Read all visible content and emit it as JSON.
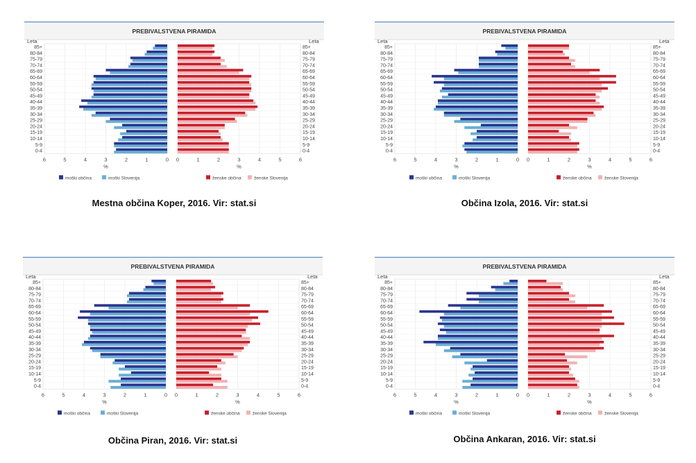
{
  "shared": {
    "title": "PREBIVALSTVENA PIRAMIDA",
    "years_label": "Leta",
    "unit": "%",
    "legend": {
      "male_local": "moški občina",
      "male_slovenia": "moški Slovenija",
      "female_local": "ženske občina",
      "female_slovenia": "ženske Slovenija"
    },
    "colors": {
      "male_local": "#2a3590",
      "male_slovenia": "#6aaed6",
      "female_local": "#c8202c",
      "female_slovenia": "#f2b2b4"
    }
  },
  "chart_data": [
    {
      "type": "bar",
      "caption": "Mestna občina Koper, 2016. Vir: stat.si",
      "xlim": [
        0,
        6
      ],
      "categories": [
        "85+",
        "80-84",
        "75-79",
        "70-74",
        "65-69",
        "60-64",
        "55-59",
        "50-54",
        "45-49",
        "40-44",
        "35-39",
        "30-34",
        "25-29",
        "20-24",
        "15-19",
        "10-14",
        "5-9",
        "0-4"
      ],
      "series": [
        {
          "name": "moški občina",
          "values": [
            0.6,
            1.0,
            1.8,
            1.8,
            3.0,
            3.6,
            3.6,
            3.7,
            3.6,
            4.2,
            4.3,
            3.5,
            2.8,
            2.2,
            2.0,
            2.2,
            2.6,
            2.5
          ]
        },
        {
          "name": "moški Slovenija",
          "values": [
            0.7,
            1.1,
            1.7,
            1.9,
            2.8,
            3.5,
            3.7,
            3.6,
            3.7,
            3.9,
            4.1,
            3.7,
            3.0,
            2.6,
            2.3,
            2.4,
            2.6,
            2.6
          ]
        },
        {
          "name": "ženske občina",
          "values": [
            1.8,
            1.8,
            2.1,
            2.1,
            3.2,
            3.6,
            3.5,
            3.6,
            3.5,
            3.7,
            3.9,
            3.3,
            2.8,
            2.3,
            2.0,
            2.1,
            2.5,
            2.5
          ]
        },
        {
          "name": "ženske Slovenija",
          "values": [
            1.7,
            1.7,
            2.3,
            2.4,
            3.0,
            3.5,
            3.6,
            3.6,
            3.5,
            3.8,
            3.8,
            3.4,
            2.9,
            2.3,
            2.1,
            2.2,
            2.5,
            2.5
          ]
        }
      ]
    },
    {
      "type": "bar",
      "caption": "Občina Izola, 2016. Vir: stat.si",
      "xlim": [
        0,
        6
      ],
      "categories": [
        "85+",
        "80-84",
        "75-79",
        "70-74",
        "65-69",
        "60-64",
        "55-59",
        "50-54",
        "45-49",
        "40-44",
        "35-39",
        "30-34",
        "25-29",
        "20-24",
        "15-19",
        "10-14",
        "5-9",
        "0-4"
      ],
      "series": [
        {
          "name": "moški občina",
          "values": [
            0.8,
            1.1,
            1.9,
            1.9,
            3.1,
            4.2,
            4.1,
            3.7,
            3.4,
            3.9,
            4.0,
            3.6,
            2.8,
            1.8,
            2.0,
            2.0,
            2.6,
            2.6
          ]
        },
        {
          "name": "moški Slovenija",
          "values": [
            0.6,
            1.0,
            1.9,
            1.9,
            2.9,
            3.6,
            3.6,
            3.8,
            3.7,
            3.9,
            4.1,
            3.6,
            3.1,
            2.6,
            2.3,
            2.2,
            2.7,
            2.5
          ]
        },
        {
          "name": "ženske občina",
          "values": [
            2.0,
            1.7,
            2.0,
            2.1,
            3.5,
            4.3,
            4.3,
            3.9,
            3.3,
            3.3,
            3.7,
            3.2,
            2.9,
            2.0,
            1.5,
            2.0,
            2.5,
            2.5
          ]
        },
        {
          "name": "ženske Slovenija",
          "values": [
            2.0,
            1.8,
            2.3,
            2.3,
            3.0,
            3.5,
            3.6,
            3.6,
            3.5,
            3.5,
            3.6,
            3.3,
            2.9,
            2.4,
            2.1,
            2.1,
            2.4,
            2.4
          ]
        }
      ]
    },
    {
      "type": "bar",
      "caption": "Občina Piran, 2016. Vir: stat.si",
      "xlim": [
        0,
        6
      ],
      "categories": [
        "85+",
        "80-84",
        "75-79",
        "70-74",
        "65-69",
        "60-64",
        "55-59",
        "50-54",
        "45-49",
        "40-44",
        "35-39",
        "30-34",
        "25-29",
        "20-24",
        "15-19",
        "10-14",
        "5-9",
        "0-4"
      ],
      "series": [
        {
          "name": "moški občina",
          "values": [
            0.7,
            1.0,
            1.8,
            1.8,
            3.5,
            4.2,
            4.3,
            3.8,
            3.7,
            3.7,
            4.0,
            3.7,
            3.2,
            2.5,
            2.0,
            1.7,
            2.2,
            2.2
          ]
        },
        {
          "name": "moški Slovenija",
          "values": [
            0.6,
            1.1,
            1.9,
            1.9,
            2.8,
            3.7,
            3.8,
            3.7,
            3.6,
            3.8,
            4.1,
            3.6,
            3.2,
            2.6,
            2.3,
            2.3,
            2.8,
            2.7
          ]
        },
        {
          "name": "ženske občina",
          "values": [
            1.7,
            1.9,
            2.3,
            2.3,
            3.6,
            4.5,
            4.0,
            4.1,
            3.4,
            3.2,
            3.6,
            3.3,
            2.8,
            2.2,
            2.0,
            1.6,
            2.2,
            1.8
          ]
        },
        {
          "name": "ženske Slovenija",
          "values": [
            1.8,
            1.7,
            2.2,
            2.2,
            3.0,
            3.6,
            3.7,
            3.5,
            3.4,
            3.6,
            3.5,
            3.2,
            3.0,
            2.4,
            2.2,
            2.2,
            2.5,
            2.5
          ]
        }
      ]
    },
    {
      "type": "bar",
      "caption": "Občina Ankaran, 2016. Vir: stat.si",
      "xlim": [
        0,
        6
      ],
      "categories": [
        "85+",
        "80-84",
        "75-79",
        "70-74",
        "65-69",
        "60-64",
        "55-59",
        "50-54",
        "45-49",
        "40-44",
        "35-39",
        "30-34",
        "25-29",
        "20-24",
        "15-19",
        "10-14",
        "5-9",
        "0-4"
      ],
      "series": [
        {
          "name": "moški občina",
          "values": [
            0.4,
            1.3,
            2.5,
            2.5,
            3.4,
            4.8,
            3.8,
            3.9,
            3.8,
            3.9,
            4.6,
            3.3,
            2.8,
            1.5,
            2.2,
            2.1,
            2.2,
            2.3
          ]
        },
        {
          "name": "moški Slovenija",
          "values": [
            0.7,
            1.1,
            1.9,
            1.9,
            2.8,
            3.6,
            3.7,
            3.6,
            3.5,
            3.9,
            4.0,
            3.6,
            3.2,
            2.6,
            2.3,
            2.4,
            2.7,
            2.7
          ]
        },
        {
          "name": "ženske občina",
          "values": [
            0.9,
            1.6,
            2.0,
            2.0,
            3.7,
            4.1,
            4.2,
            4.7,
            3.5,
            4.2,
            3.7,
            3.7,
            1.8,
            1.9,
            2.0,
            2.0,
            2.3,
            2.4
          ]
        },
        {
          "name": "ženske Slovenija",
          "values": [
            1.7,
            1.7,
            2.3,
            2.3,
            2.9,
            3.6,
            3.6,
            3.6,
            3.5,
            3.6,
            3.5,
            3.3,
            2.9,
            2.4,
            2.1,
            2.2,
            2.5,
            2.5
          ]
        }
      ]
    }
  ]
}
